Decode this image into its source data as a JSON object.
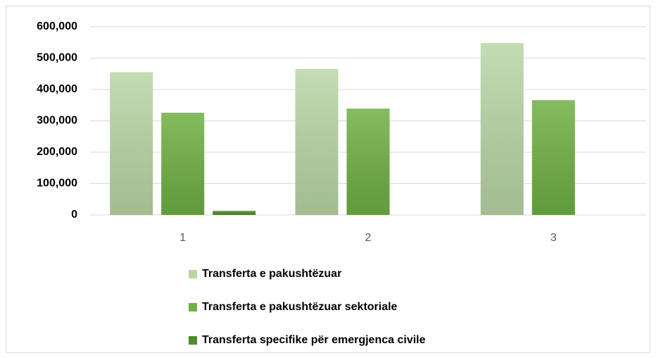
{
  "chart_data": {
    "type": "bar",
    "categories": [
      "1",
      "2",
      "3"
    ],
    "series": [
      {
        "name": "Transferta e pakushtëzuar",
        "color": "#b9d6a5",
        "values": [
          455000,
          465000,
          548000
        ]
      },
      {
        "name": "Transferta e pakushtëzuar sektoriale",
        "color": "#6fb043",
        "values": [
          326000,
          339000,
          366000
        ]
      },
      {
        "name": "Transferta specifike për emergjenca civile",
        "color": "#4f8a2b",
        "values": [
          13000,
          0,
          0
        ]
      }
    ],
    "ylim": [
      0,
      600000
    ],
    "yticks": [
      0,
      {
        "value": 100000,
        "label": "100,000"
      },
      {
        "value": 200000,
        "label": "200,000"
      },
      {
        "value": 300000,
        "label": "300,000"
      },
      {
        "value": 400000,
        "label": "400,000"
      },
      {
        "value": 500000,
        "label": "500,000"
      },
      {
        "value": 600000,
        "label": "600,000"
      }
    ],
    "grid": true,
    "legend": "bottom"
  }
}
